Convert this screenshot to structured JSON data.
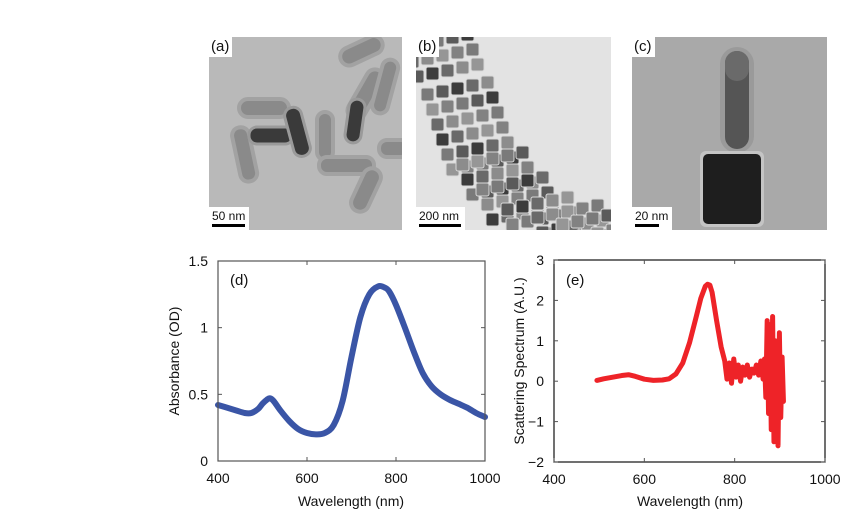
{
  "panels": {
    "a": {
      "label": "(a)",
      "scale": "50 nm"
    },
    "b": {
      "label": "(b)",
      "scale": "200 nm"
    },
    "c": {
      "label": "(c)",
      "scale": "20 nm"
    }
  },
  "chart_data": [
    {
      "type": "line",
      "panel_label": "(d)",
      "xlabel": "Wavelength (nm)",
      "ylabel": "Absorbance (OD)",
      "xlim": [
        400,
        1000
      ],
      "ylim": [
        0,
        1.5
      ],
      "xticks": [
        "400",
        "600",
        "800",
        "1000"
      ],
      "yticks": [
        "0",
        "0.5",
        "1",
        "1.5"
      ],
      "color": "#3a55a6",
      "series": [
        {
          "name": "Absorbance",
          "x": [
            400,
            420,
            440,
            460,
            475,
            490,
            500,
            510,
            517,
            525,
            540,
            560,
            580,
            600,
            620,
            640,
            660,
            680,
            700,
            720,
            740,
            760,
            775,
            785,
            800,
            820,
            840,
            860,
            880,
            900,
            920,
            940,
            960,
            980,
            1000
          ],
          "y": [
            0.42,
            0.4,
            0.38,
            0.36,
            0.36,
            0.39,
            0.43,
            0.46,
            0.47,
            0.45,
            0.38,
            0.3,
            0.24,
            0.21,
            0.2,
            0.21,
            0.27,
            0.45,
            0.78,
            1.08,
            1.25,
            1.31,
            1.3,
            1.27,
            1.17,
            1.0,
            0.82,
            0.66,
            0.56,
            0.5,
            0.46,
            0.43,
            0.4,
            0.36,
            0.33
          ]
        }
      ]
    },
    {
      "type": "line",
      "panel_label": "(e)",
      "xlabel": "Wavelength (nm)",
      "ylabel": "Scattering Spectrum (A.U.)",
      "xlim": [
        400,
        1000
      ],
      "ylim": [
        -2,
        3
      ],
      "xticks": [
        "400",
        "600",
        "800",
        "1000"
      ],
      "yticks": [
        "−2",
        "−1",
        "0",
        "1",
        "2",
        "3"
      ],
      "color": "#ee2328",
      "series": [
        {
          "name": "Scattering",
          "x": [
            495,
            510,
            530,
            550,
            565,
            580,
            600,
            620,
            640,
            655,
            670,
            685,
            700,
            715,
            725,
            735,
            740,
            745,
            750,
            760,
            770,
            778,
            783,
            788,
            793,
            798,
            803,
            808,
            813,
            818,
            823,
            828,
            833,
            838,
            843,
            848,
            853,
            858,
            863,
            866,
            869,
            872,
            875,
            878,
            881,
            884,
            887,
            890,
            893,
            896,
            899,
            902,
            905,
            908
          ],
          "y": [
            0.02,
            0.06,
            0.1,
            0.14,
            0.16,
            0.12,
            0.05,
            0.02,
            0.03,
            0.06,
            0.18,
            0.45,
            0.95,
            1.6,
            2.05,
            2.35,
            2.4,
            2.38,
            2.2,
            1.5,
            0.85,
            0.5,
            0.05,
            0.45,
            -0.05,
            0.55,
            0.1,
            0.4,
            0.0,
            0.35,
            0.15,
            0.4,
            0.1,
            0.3,
            0.2,
            0.4,
            0.15,
            0.5,
            0.05,
            0.55,
            -0.4,
            1.5,
            -0.8,
            1.4,
            -1.2,
            1.6,
            -1.5,
            1.0,
            -0.6,
            -1.6,
            1.2,
            -0.9,
            0.6,
            -0.5
          ]
        }
      ]
    }
  ]
}
